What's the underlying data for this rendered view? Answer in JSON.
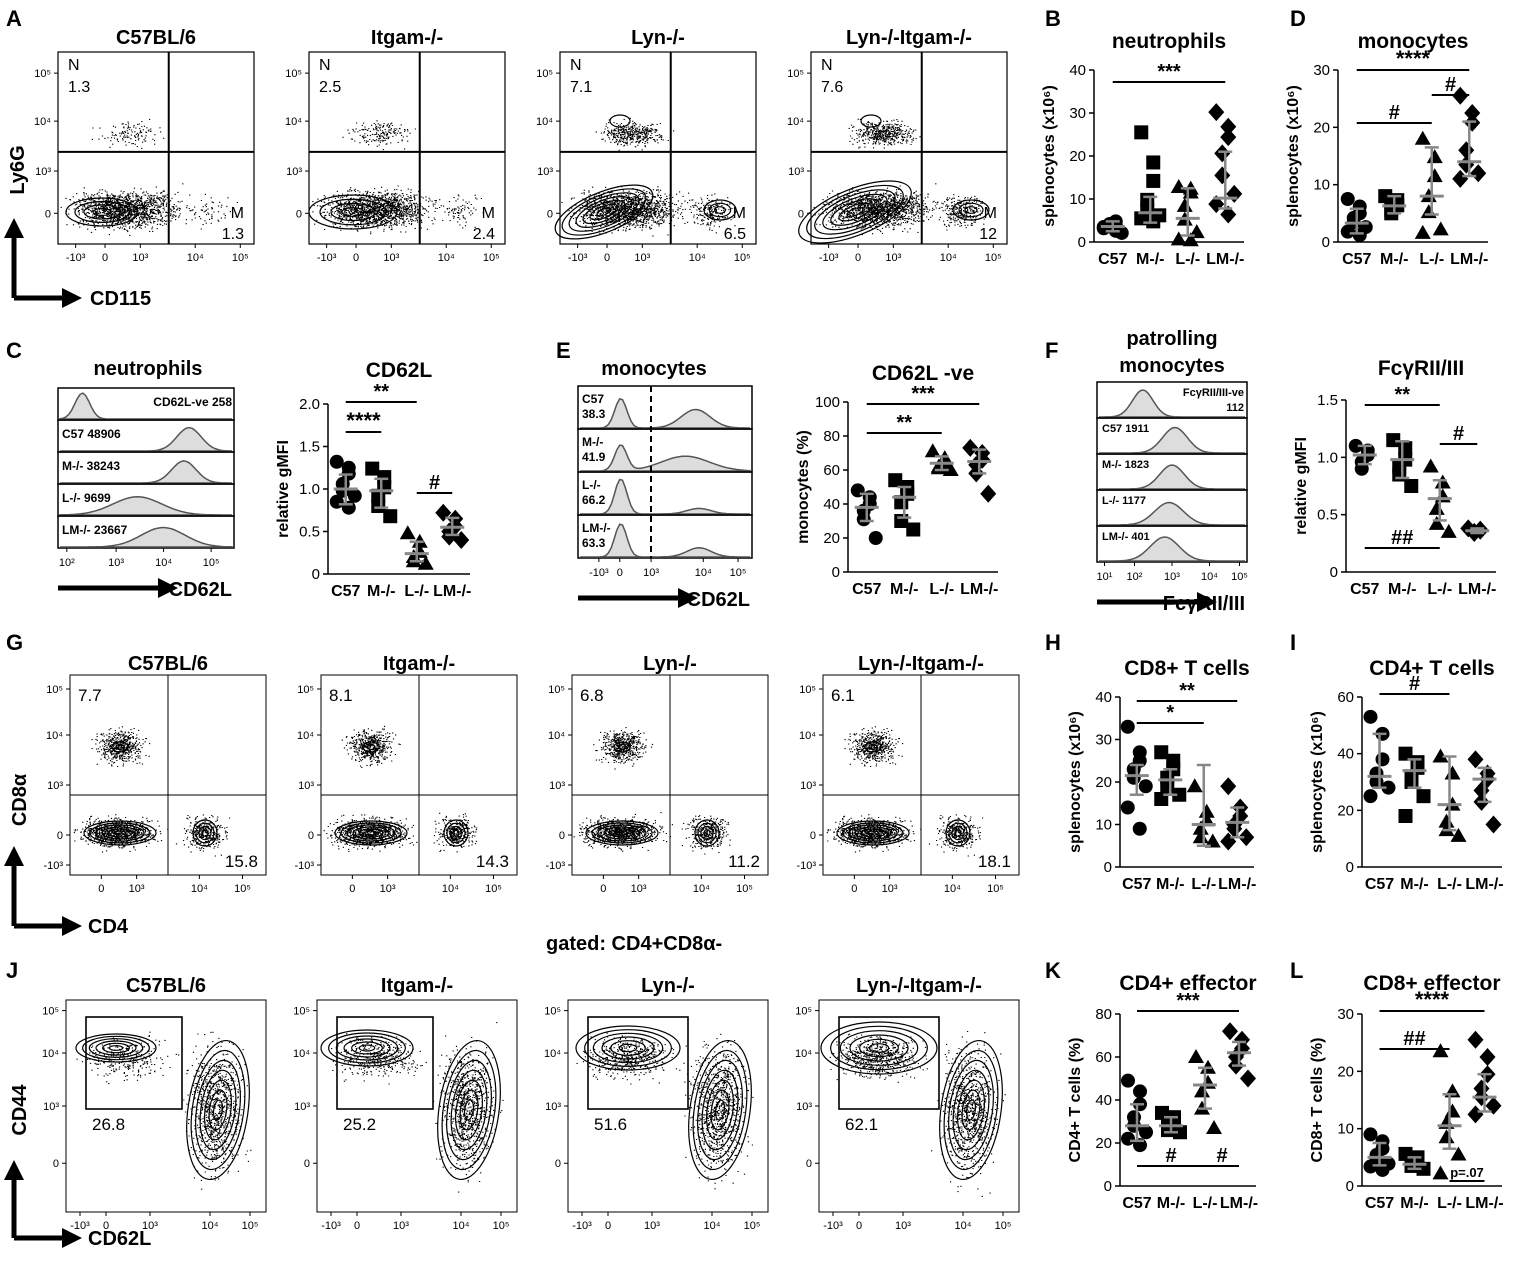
{
  "figure": {
    "panel_letters": [
      "A",
      "B",
      "C",
      "D",
      "E",
      "F",
      "G",
      "H",
      "I",
      "J",
      "K",
      "L"
    ],
    "gated_label": "gated: CD4+CD8α-",
    "row_A": {
      "ylabel": "Ly6G",
      "xlabel": "CD115",
      "yticks": [
        "10⁵",
        "10⁴",
        "10³",
        "0"
      ],
      "xticks": [
        "-10³",
        "0",
        "10³",
        "10⁴",
        "10⁵"
      ],
      "plots": [
        {
          "title": "C57BL/6",
          "n_label": "N",
          "n_value": "1.3",
          "m_label": "M",
          "m_value": "1.3"
        },
        {
          "title": "Itgam-/-",
          "n_label": "N",
          "n_value": "2.5",
          "m_label": "M",
          "m_value": "2.4"
        },
        {
          "title": "Lyn-/-",
          "n_label": "N",
          "n_value": "7.1",
          "m_label": "M",
          "m_value": "6.5"
        },
        {
          "title": "Lyn-/-Itgam-/-",
          "n_label": "N",
          "n_value": "7.6",
          "m_label": "M",
          "m_value": "12"
        }
      ]
    },
    "row_G": {
      "ylabel": "CD8α",
      "xlabel": "CD4",
      "yticks": [
        "10⁵",
        "10⁴",
        "10³",
        "0",
        "-10³"
      ],
      "xticks": [
        "0",
        "10³",
        "10⁴",
        "10⁵"
      ],
      "plots": [
        {
          "title": "C57BL/6",
          "tl": "7.7",
          "br": "15.8"
        },
        {
          "title": "Itgam-/-",
          "tl": "8.1",
          "br": "14.3"
        },
        {
          "title": "Lyn-/-",
          "tl": "6.8",
          "br": "11.2"
        },
        {
          "title": "Lyn-/-Itgam-/-",
          "tl": "6.1",
          "br": "18.1"
        }
      ]
    },
    "row_J": {
      "ylabel": "CD44",
      "xlabel": "CD62L",
      "yticks": [
        "10⁵",
        "10⁴",
        "10³",
        "0"
      ],
      "xticks": [
        "-10³",
        "0",
        "10³",
        "10⁴",
        "10⁵"
      ],
      "plots": [
        {
          "title": "C57BL/6",
          "gate": "26.8"
        },
        {
          "title": "Itgam-/-",
          "gate": "25.2"
        },
        {
          "title": "Lyn-/-",
          "gate": "51.6"
        },
        {
          "title": "Lyn-/-Itgam-/-",
          "gate": "62.1"
        }
      ]
    },
    "hist_C": {
      "title": "neutrophils",
      "xlabel": "CD62L",
      "xticks": [
        "10²",
        "10³",
        "10⁴",
        "10⁵"
      ],
      "rows": [
        "CD62L-ve 258",
        "C57 48906",
        "M-/- 38243",
        "L-/- 9699",
        "LM-/- 23667"
      ]
    },
    "hist_E": {
      "title": "monocytes",
      "xlabel": "CD62L",
      "xticks": [
        "-10³",
        "0",
        "10³",
        "10⁴",
        "10⁵"
      ],
      "rows": [
        [
          "C57",
          "38.3"
        ],
        [
          "M-/-",
          "41.9"
        ],
        [
          "L-/-",
          "66.2"
        ],
        [
          "LM-/-",
          "63.3"
        ]
      ]
    },
    "hist_F": {
      "title_line1": "patrolling",
      "title_line2": "monocytes",
      "xlabel": "FcγRII/III",
      "xticks": [
        "10¹",
        "10²",
        "10³",
        "10⁴",
        "10⁵"
      ],
      "rows": [
        [
          "FcγRII/III-ve",
          "112"
        ],
        [
          "C57 1911",
          ""
        ],
        [
          "M-/- 1823",
          ""
        ],
        [
          "L-/- 1177",
          ""
        ],
        [
          "LM-/- 401",
          ""
        ]
      ]
    }
  },
  "chart_data": [
    {
      "type": "scatter",
      "panel": "B",
      "title": "neutrophils",
      "ylabel": "splenocytes (x10⁶)",
      "ylim": [
        0,
        40
      ],
      "yticks": [
        0,
        10,
        20,
        30,
        40
      ],
      "categories": [
        "C57",
        "M-/-",
        "L-/-",
        "LM-/-"
      ],
      "series": [
        {
          "values": [
            [
              3.2,
              4.8,
              2.6,
              3.9,
              4.2,
              2.1,
              3.5,
              4.0
            ]
          ]
        },
        {
          "values": [
            [
              25.5,
              18.5,
              14.2,
              9.8,
              7.5,
              6.2,
              5.5,
              4.8
            ]
          ]
        },
        {
          "values": [
            [
              12.8,
              12.4,
              11.5,
              8.4,
              5.2,
              2.3,
              0.6,
              0.4
            ]
          ]
        },
        {
          "values": [
            [
              30.2,
              26.8,
              24.4,
              20.6,
              15.5,
              11.2,
              8.8,
              6.4
            ]
          ]
        }
      ],
      "medians": [
        3.6,
        6.8,
        5.5,
        10.2
      ],
      "ranges": [
        [
          2.5,
          4.8
        ],
        [
          4.5,
          10.5
        ],
        [
          1.5,
          12.5
        ],
        [
          7.8,
          21.0
        ]
      ],
      "annotations": [
        {
          "text": "***",
          "from": "C57",
          "to": "LM-/-"
        }
      ]
    },
    {
      "type": "scatter",
      "panel": "D",
      "title": "monocytes",
      "ylabel": "splenocytes (x10⁶)",
      "ylim": [
        0,
        30
      ],
      "yticks": [
        0,
        10,
        20,
        30
      ],
      "categories": [
        "C57",
        "M-/-",
        "L-/-",
        "LM-/-"
      ],
      "series": [
        {
          "values": [
            [
              7.5,
              6.2,
              5.0,
              4.2,
              3.4,
              2.6,
              1.8,
              1.2
            ]
          ]
        },
        {
          "values": [
            [
              8.0,
              7.3,
              6.4,
              5.6,
              5.0
            ]
          ]
        },
        {
          "values": [
            [
              18.0,
              14.8,
              11.5,
              8.0,
              5.2,
              2.2,
              1.6
            ]
          ]
        },
        {
          "values": [
            [
              25.5,
              22.5,
              20.8,
              16.0,
              13.5,
              12.0,
              11.0
            ]
          ]
        }
      ],
      "medians": [
        3.3,
        6.3,
        8.0,
        14.0
      ],
      "ranges": [
        [
          1.5,
          5.8
        ],
        [
          5.0,
          8.0
        ],
        [
          4.8,
          16.5
        ],
        [
          11.5,
          21.0
        ]
      ],
      "annotations": [
        {
          "text": "****",
          "from": "C57",
          "to": "LM-/-"
        },
        {
          "text": "#",
          "from": "C57",
          "to": "L-/-"
        },
        {
          "text": "#",
          "from": "L-/-",
          "to": "LM-/-"
        }
      ]
    },
    {
      "type": "scatter",
      "panel": "C",
      "title": "CD62L",
      "ylabel": "relative gMFI",
      "ylim": [
        0,
        2.0
      ],
      "yticks": [
        0,
        0.5,
        1.0,
        1.5,
        2.0
      ],
      "categories": [
        "C57",
        "M-/-",
        "L-/-",
        "LM-/-"
      ],
      "series": [
        {
          "values": [
            [
              1.32,
              1.25,
              1.18,
              1.06,
              0.98,
              0.92,
              0.85,
              0.78
            ]
          ]
        },
        {
          "values": [
            [
              1.24,
              1.14,
              1.02,
              0.92,
              0.8,
              0.68
            ]
          ]
        },
        {
          "values": [
            [
              0.48,
              0.38,
              0.26,
              0.2,
              0.15,
              0.12
            ]
          ]
        },
        {
          "values": [
            [
              0.72,
              0.65,
              0.56,
              0.5,
              0.44,
              0.4
            ]
          ]
        }
      ],
      "medians": [
        1.0,
        0.98,
        0.24,
        0.55
      ],
      "ranges": [
        [
          0.82,
          1.17
        ],
        [
          0.78,
          1.12
        ],
        [
          0.15,
          0.38
        ],
        [
          0.46,
          0.66
        ]
      ],
      "annotations": [
        {
          "text": "**",
          "from": "C57",
          "to": "L-/-"
        },
        {
          "text": "****",
          "from": "C57",
          "to": "M-/-"
        },
        {
          "text": "#",
          "from": "L-/-",
          "to": "LM-/-"
        }
      ]
    },
    {
      "type": "scatter",
      "panel": "E",
      "title": "CD62L -ve",
      "ylabel": "monocytes (%)",
      "ylim": [
        0,
        100
      ],
      "yticks": [
        0,
        20,
        40,
        60,
        80,
        100
      ],
      "categories": [
        "C57",
        "M-/-",
        "L-/-",
        "LM-/-"
      ],
      "series": [
        {
          "values": [
            [
              48,
              44,
              40,
              36,
              31,
              20
            ]
          ]
        },
        {
          "values": [
            [
              54,
              50,
              46,
              41,
              30,
              25
            ]
          ]
        },
        {
          "values": [
            [
              71,
              67,
              64,
              62,
              61,
              60
            ]
          ]
        },
        {
          "values": [
            [
              73,
              70,
              66,
              63,
              58,
              46
            ]
          ]
        }
      ],
      "medians": [
        38,
        44,
        64,
        65
      ],
      "ranges": [
        [
          30,
          46
        ],
        [
          32,
          50
        ],
        [
          60,
          68
        ],
        [
          58,
          72
        ]
      ],
      "annotations": [
        {
          "text": "***",
          "from": "C57",
          "to": "LM-/-"
        },
        {
          "text": "**",
          "from": "C57",
          "to": "L-/-"
        }
      ]
    },
    {
      "type": "scatter",
      "panel": "F",
      "title": "FcγRII/III",
      "ylabel": "relative gMFI",
      "ylim": [
        0,
        1.5
      ],
      "yticks": [
        0,
        0.5,
        1.0,
        1.5
      ],
      "categories": [
        "C57",
        "M-/-",
        "L-/-",
        "LM-/-"
      ],
      "series": [
        {
          "values": [
            [
              1.1,
              1.06,
              1.02,
              0.96,
              0.9
            ]
          ]
        },
        {
          "values": [
            [
              1.15,
              1.08,
              0.98,
              0.92,
              0.85,
              0.75
            ]
          ]
        },
        {
          "values": [
            [
              0.92,
              0.78,
              0.66,
              0.55,
              0.42,
              0.35
            ]
          ]
        },
        {
          "values": [
            [
              0.38,
              0.37,
              0.36,
              0.35,
              0.34
            ]
          ]
        }
      ],
      "medians": [
        1.02,
        0.98,
        0.64,
        0.36
      ],
      "ranges": [
        [
          0.94,
          1.1
        ],
        [
          0.82,
          1.14
        ],
        [
          0.45,
          0.8
        ],
        [
          0.34,
          0.38
        ]
      ],
      "annotations": [
        {
          "text": "**",
          "from": "C57",
          "to": "L-/-"
        },
        {
          "text": "#",
          "from": "L-/-",
          "to": "LM-/-"
        },
        {
          "text": "##",
          "from": "C57",
          "to": "L-/-"
        }
      ]
    },
    {
      "type": "scatter",
      "panel": "H",
      "title": "CD8+ T cells",
      "ylabel": "splenocytes (x10⁶)",
      "ylim": [
        0,
        40
      ],
      "yticks": [
        0,
        10,
        20,
        30,
        40
      ],
      "categories": [
        "C57",
        "M-/-",
        "L-/-",
        "LM-/-"
      ],
      "series": [
        {
          "values": [
            [
              33,
              27,
              25,
              23,
              21,
              19,
              14,
              9
            ]
          ]
        },
        {
          "values": [
            [
              27,
              25,
              23,
              21,
              19,
              17,
              16
            ]
          ]
        },
        {
          "values": [
            [
              19,
              13,
              11,
              9,
              7,
              6
            ]
          ]
        },
        {
          "values": [
            [
              19,
              14,
              12,
              10,
              9,
              7,
              6
            ]
          ]
        }
      ],
      "medians": [
        21.5,
        20.5,
        10.0,
        10.5
      ],
      "ranges": [
        [
          17,
          24
        ],
        [
          17,
          23
        ],
        [
          5,
          24
        ],
        [
          7,
          14
        ]
      ],
      "annotations": [
        {
          "text": "**",
          "from": "C57",
          "to": "LM-/-"
        },
        {
          "text": "*",
          "from": "C57",
          "to": "L-/-"
        }
      ]
    },
    {
      "type": "scatter",
      "panel": "I",
      "title": "CD4+ T cells",
      "ylabel": "splenocytes (x10⁶)",
      "ylim": [
        0,
        60
      ],
      "yticks": [
        0,
        20,
        40,
        60
      ],
      "categories": [
        "C57",
        "M-/-",
        "L-/-",
        "LM-/-"
      ],
      "series": [
        {
          "values": [
            [
              53,
              47,
              38,
              33,
              30,
              28,
              25
            ]
          ]
        },
        {
          "values": [
            [
              40,
              37,
              35,
              32,
              30,
              25,
              18
            ]
          ]
        },
        {
          "values": [
            [
              39,
              33,
              22,
              16,
              13,
              11
            ]
          ]
        },
        {
          "values": [
            [
              38,
              33,
              31,
              27,
              23,
              15
            ]
          ]
        }
      ],
      "medians": [
        32,
        34,
        22,
        31
      ],
      "ranges": [
        [
          28,
          47
        ],
        [
          28,
          38
        ],
        [
          13,
          39
        ],
        [
          23,
          35
        ]
      ],
      "annotations": [
        {
          "text": "#",
          "from": "C57",
          "to": "L-/-"
        }
      ]
    },
    {
      "type": "scatter",
      "panel": "K",
      "title": "CD4+ effector",
      "ylabel": "CD4+ T cells (%)",
      "ylim": [
        0,
        80
      ],
      "yticks": [
        0,
        20,
        40,
        60,
        80
      ],
      "categories": [
        "C57",
        "M-/-",
        "L-/-",
        "LM-/-"
      ],
      "series": [
        {
          "values": [
            [
              49,
              44,
              38,
              32,
              28,
              25,
              22,
              19
            ]
          ]
        },
        {
          "values": [
            [
              34,
              32,
              30,
              28,
              26,
              25
            ]
          ]
        },
        {
          "values": [
            [
              60,
              55,
              48,
              44,
              36,
              27
            ]
          ]
        },
        {
          "values": [
            [
              72,
              68,
              64,
              60,
              56,
              50
            ]
          ]
        }
      ],
      "medians": [
        28,
        28,
        47,
        62
      ],
      "ranges": [
        [
          21,
          38
        ],
        [
          25,
          32
        ],
        [
          36,
          55
        ],
        [
          56,
          67
        ]
      ],
      "annotations": [
        {
          "text": "***",
          "from": "C57",
          "to": "LM-/-"
        },
        {
          "text": "#",
          "from": "C57",
          "to": "L-/-"
        },
        {
          "text": "#",
          "from": "L-/-",
          "to": "LM-/-"
        }
      ]
    },
    {
      "type": "scatter",
      "panel": "L",
      "title": "CD8+ effector",
      "ylabel": "CD8+ T cells (%)",
      "ylim": [
        0,
        30
      ],
      "yticks": [
        0,
        10,
        20,
        30
      ],
      "categories": [
        "C57",
        "M-/-",
        "L-/-",
        "LM-/-"
      ],
      "series": [
        {
          "values": [
            [
              9.0,
              7.8,
              6.5,
              5.4,
              4.6,
              3.9,
              3.4,
              2.8
            ]
          ]
        },
        {
          "values": [
            [
              5.6,
              5.0,
              4.5,
              4.0,
              3.5,
              3.0
            ]
          ]
        },
        {
          "values": [
            [
              23.5,
              16.5,
              13.0,
              11.0,
              8.5,
              5.5,
              2.2
            ]
          ]
        },
        {
          "values": [
            [
              25.5,
              22.5,
              19.5,
              17.0,
              15.5,
              14.0,
              12.5
            ]
          ]
        }
      ],
      "medians": [
        5.0,
        3.8,
        10.5,
        15.5
      ],
      "ranges": [
        [
          3.6,
          7.5
        ],
        [
          3.0,
          5.0
        ],
        [
          6.5,
          16.0
        ],
        [
          13.0,
          19.5
        ]
      ],
      "annotations": [
        {
          "text": "****",
          "from": "C57",
          "to": "LM-/-"
        },
        {
          "text": "##",
          "from": "C57",
          "to": "L-/-"
        },
        {
          "text": "p=.07",
          "from": "L-/-",
          "to": "LM-/-"
        }
      ]
    }
  ]
}
